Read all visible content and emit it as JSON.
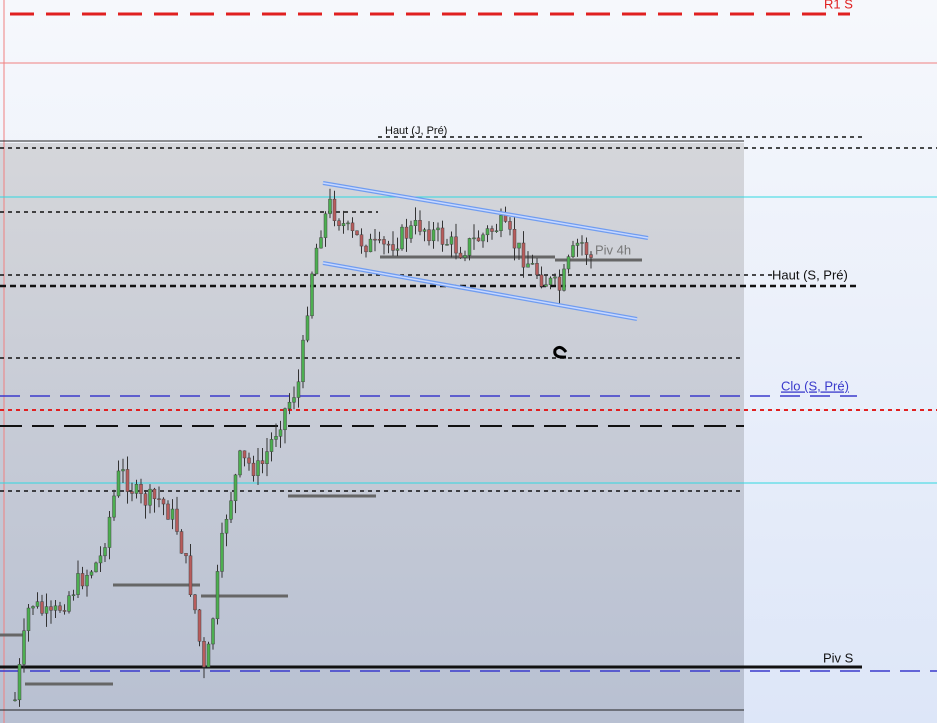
{
  "annotations": {
    "r1_s": "R1 S",
    "haut_j_pre": "Haut (J, Pré)",
    "piv_4h": "Piv 4h",
    "haut_s_pre": "Haut (S, Pré)",
    "clo_s_pre": "Clo (S, Pré)",
    "piv_s": "Piv S"
  }
}
